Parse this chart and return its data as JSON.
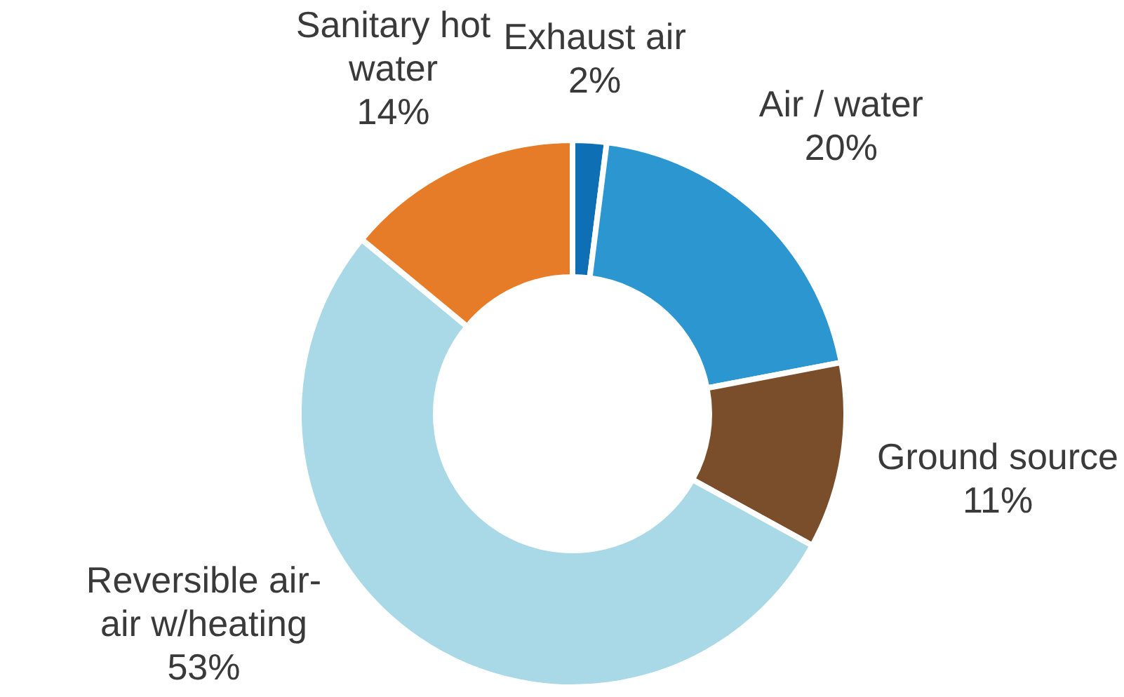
{
  "chart_data": {
    "type": "donut",
    "categories": [
      "Exhaust air",
      "Air / water",
      "Ground source",
      "Reversible air-air w/heating",
      "Sanitary hot water"
    ],
    "values": [
      2,
      20,
      11,
      53,
      14
    ],
    "value_labels": [
      "2%",
      "20%",
      "11%",
      "53%",
      "14%"
    ],
    "colors": [
      "#0e6fb4",
      "#2b96d0",
      "#7a4e2b",
      "#a9d8e7",
      "#e77c28"
    ]
  }
}
